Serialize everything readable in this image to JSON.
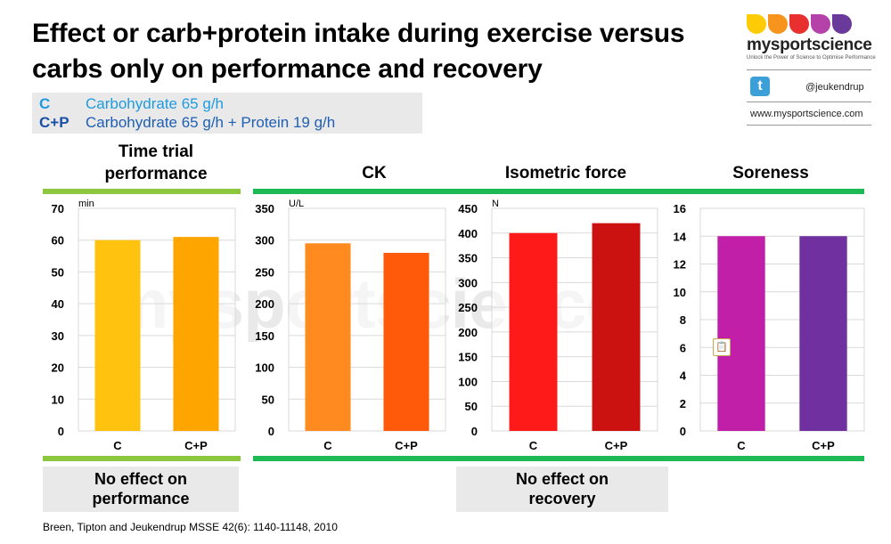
{
  "title": "Effect or carb+protein intake during exercise versus carbs only on performance and recovery",
  "legend": {
    "c_key": "C",
    "c_label": "Carbohydrate 65 g/h",
    "cp_key": "C+P",
    "cp_label": "Carbohydrate 65 g/h + Protein 19 g/h"
  },
  "brand": {
    "name": "mysportscience",
    "tagline": "Unlock the Power of Science to Optimise Performance",
    "handle": "@jeukendrup",
    "website": "www.mysportscience.com",
    "watermark": "mysportscience",
    "colors": [
      "#ffcb05",
      "#f7941d",
      "#e8312f",
      "#b542a8",
      "#6a3a9a"
    ]
  },
  "headers": {
    "time_trial": "Time trial performance",
    "ck": "CK",
    "isometric": "Isometric force",
    "soreness": "Soreness"
  },
  "footnotes": {
    "performance": "No effect on performance",
    "recovery": "No effect on recovery"
  },
  "citation": "Breen, Tipton and Jeukendrup MSSE 42(6): 1140-11148, 2010",
  "colors": {
    "performance_bar": "#8dc63f",
    "recovery_bar": "#1db954"
  },
  "chart_data": [
    {
      "type": "bar",
      "title": "Time trial performance",
      "ylabel": "min",
      "categories": [
        "C",
        "C+P"
      ],
      "values": [
        60,
        61
      ],
      "ylim": [
        0,
        70
      ],
      "yticks": [
        0,
        10,
        20,
        30,
        40,
        50,
        60,
        70
      ],
      "colors": [
        "#ffc20e",
        "#ffa500"
      ],
      "grid": true
    },
    {
      "type": "bar",
      "title": "CK",
      "ylabel": "U/L",
      "categories": [
        "C",
        "C+P"
      ],
      "values": [
        295,
        280
      ],
      "ylim": [
        0,
        350
      ],
      "yticks": [
        0,
        50,
        100,
        150,
        200,
        250,
        300,
        350
      ],
      "colors": [
        "#ff8a1f",
        "#ff5a0a"
      ],
      "grid": true
    },
    {
      "type": "bar",
      "title": "Isometric force",
      "ylabel": "N",
      "categories": [
        "C",
        "C+P"
      ],
      "values": [
        400,
        420
      ],
      "ylim": [
        0,
        450
      ],
      "yticks": [
        0,
        50,
        100,
        150,
        200,
        250,
        300,
        350,
        400,
        450
      ],
      "colors": [
        "#ff1a1a",
        "#cc1111"
      ],
      "grid": true
    },
    {
      "type": "bar",
      "title": "Soreness",
      "ylabel": "",
      "categories": [
        "C",
        "C+P"
      ],
      "values": [
        14,
        14
      ],
      "ylim": [
        0,
        16
      ],
      "yticks": [
        0,
        2,
        4,
        6,
        8,
        10,
        12,
        14,
        16
      ],
      "colors": [
        "#c21fa8",
        "#7030a0"
      ],
      "grid": true
    }
  ]
}
